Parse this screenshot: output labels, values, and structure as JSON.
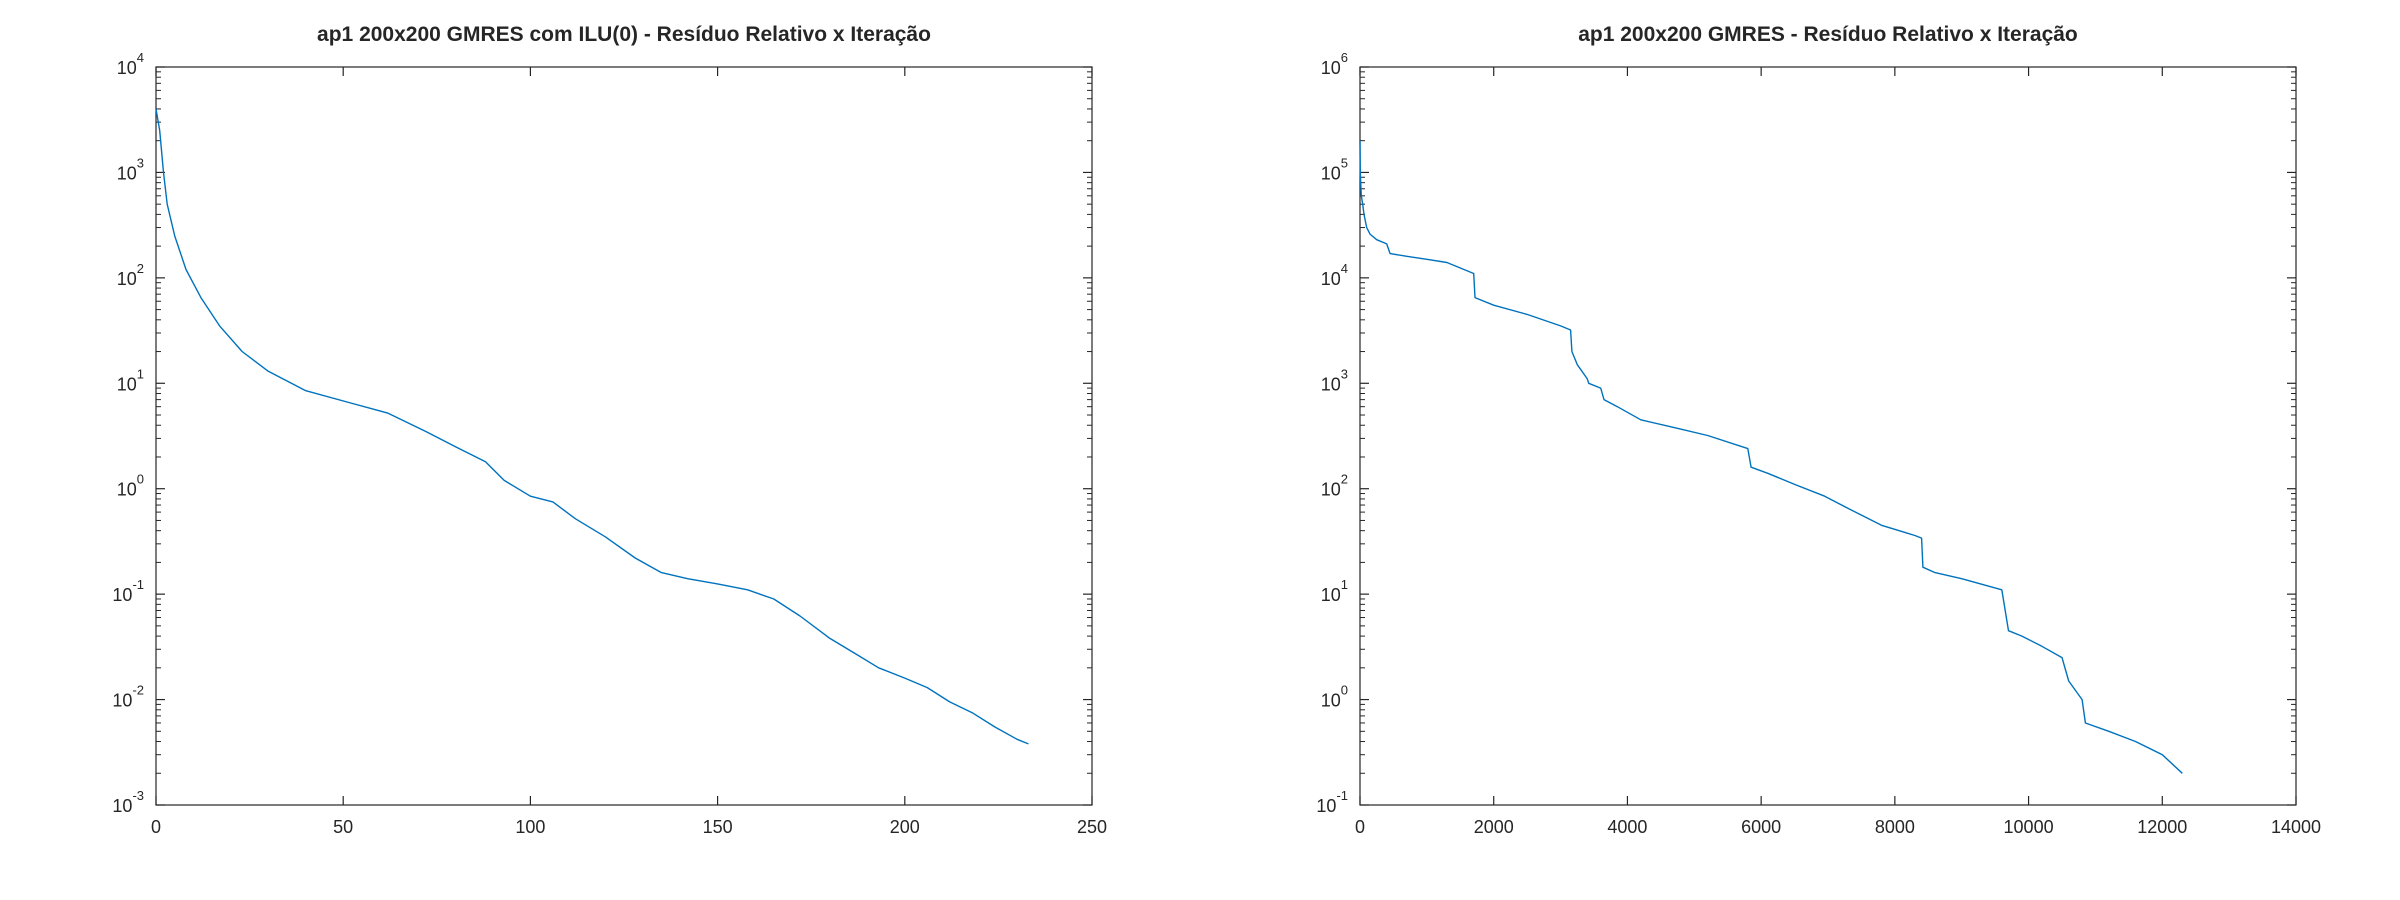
{
  "chart_data": [
    {
      "type": "line",
      "title": "ap1 200x200 GMRES com ILU(0) - Resíduo Relativo x Iteração",
      "xlabel": "",
      "ylabel": "",
      "xlim": [
        0,
        250
      ],
      "ylim": [
        0.001,
        10000
      ],
      "yscale": "log",
      "grid": false,
      "legend": "none",
      "color": "#0072bd",
      "xticks": [
        0,
        50,
        100,
        150,
        200,
        250
      ],
      "yticks": [
        {
          "base": "10",
          "exp": "-3"
        },
        {
          "base": "10",
          "exp": "-2"
        },
        {
          "base": "10",
          "exp": "-1"
        },
        {
          "base": "10",
          "exp": "0"
        },
        {
          "base": "10",
          "exp": "1"
        },
        {
          "base": "10",
          "exp": "2"
        },
        {
          "base": "10",
          "exp": "3"
        },
        {
          "base": "10",
          "exp": "4"
        }
      ],
      "x": [
        0,
        1,
        2,
        3,
        5,
        8,
        12,
        17,
        23,
        30,
        40,
        52,
        62,
        72,
        80,
        88,
        93,
        100,
        106,
        112,
        120,
        128,
        135,
        142,
        150,
        158,
        165,
        172,
        180,
        187,
        193,
        200,
        206,
        212,
        218,
        224,
        230,
        233
      ],
      "y": [
        4000,
        2500,
        1000,
        500,
        250,
        120,
        65,
        35,
        20,
        13,
        8.5,
        6.5,
        5.2,
        3.5,
        2.5,
        1.8,
        1.2,
        0.85,
        0.75,
        0.52,
        0.35,
        0.22,
        0.16,
        0.14,
        0.125,
        0.11,
        0.09,
        0.062,
        0.038,
        0.027,
        0.02,
        0.016,
        0.013,
        0.0095,
        0.0075,
        0.0055,
        0.0042,
        0.0038
      ]
    },
    {
      "type": "line",
      "title": "ap1 200x200 GMRES - Resíduo Relativo x Iteração",
      "xlabel": "",
      "ylabel": "",
      "xlim": [
        0,
        14000
      ],
      "ylim": [
        0.1,
        1000000
      ],
      "yscale": "log",
      "grid": false,
      "legend": "none",
      "color": "#0072bd",
      "xticks": [
        0,
        2000,
        4000,
        6000,
        8000,
        10000,
        12000,
        14000
      ],
      "yticks": [
        {
          "base": "10",
          "exp": "-1"
        },
        {
          "base": "10",
          "exp": "0"
        },
        {
          "base": "10",
          "exp": "1"
        },
        {
          "base": "10",
          "exp": "2"
        },
        {
          "base": "10",
          "exp": "3"
        },
        {
          "base": "10",
          "exp": "4"
        },
        {
          "base": "10",
          "exp": "5"
        },
        {
          "base": "10",
          "exp": "6"
        }
      ],
      "x": [
        0,
        5,
        10,
        20,
        40,
        60,
        100,
        150,
        250,
        400,
        450,
        700,
        1000,
        1300,
        1700,
        1720,
        2000,
        2500,
        3000,
        3150,
        3170,
        3250,
        3400,
        3420,
        3600,
        3650,
        3850,
        4200,
        4700,
        5200,
        5800,
        5850,
        6100,
        6500,
        6950,
        7300,
        7800,
        8300,
        8400,
        8420,
        8600,
        9000,
        9600,
        9650,
        9700,
        9900,
        10200,
        10500,
        10600,
        10800,
        10850,
        11200,
        11600,
        12000,
        12300
      ],
      "y": [
        200000,
        100000,
        80000,
        60000,
        50000,
        40000,
        30000,
        26000,
        23000,
        21000,
        17000,
        16000,
        15000,
        14000,
        11000,
        6500,
        5500,
        4500,
        3500,
        3200,
        2000,
        1500,
        1100,
        1000,
        900,
        700,
        600,
        450,
        380,
        320,
        240,
        160,
        140,
        110,
        85,
        65,
        45,
        36,
        34,
        18,
        16,
        14,
        11,
        7,
        4.5,
        4,
        3.2,
        2.5,
        1.5,
        1,
        0.6,
        0.5,
        0.4,
        0.3,
        0.2
      ]
    }
  ]
}
